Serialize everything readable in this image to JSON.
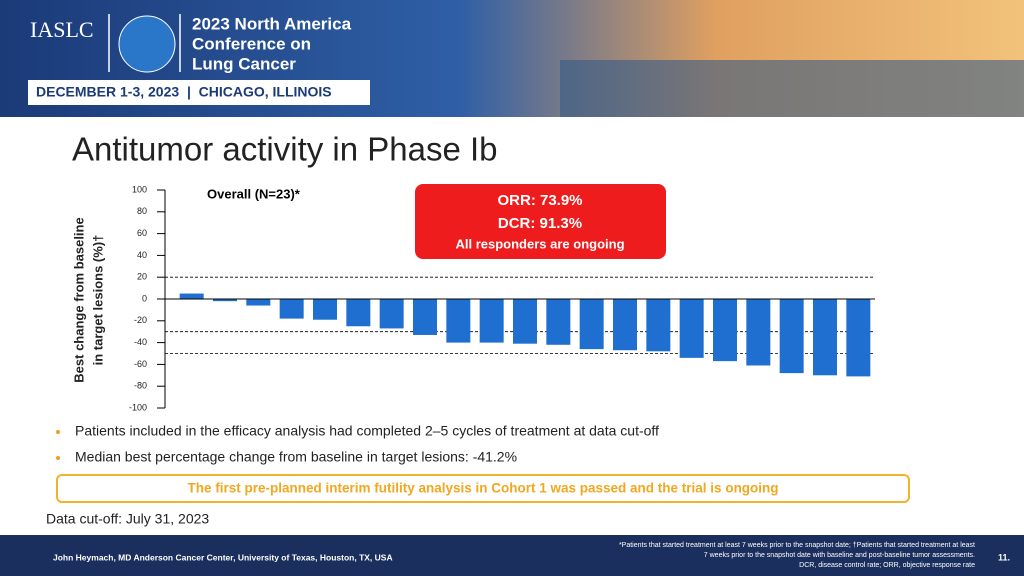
{
  "header": {
    "org": "IASLC",
    "conference": [
      "2023 North America",
      "Conference on",
      "Lung Cancer"
    ],
    "dates": "DECEMBER 1-3, 2023  |  CHICAGO, ILLINOIS"
  },
  "slide_title": "Antitumor activity in Phase Ib",
  "chart_data": {
    "type": "bar",
    "title": "Overall (N=23)*",
    "y_label": [
      "Best change from baseline",
      "in target lesions (%)†"
    ],
    "values": [
      5,
      -2,
      -6,
      -18,
      -19,
      -25,
      -27,
      -33,
      -40,
      -40,
      -41,
      -42,
      -46,
      -47,
      -48,
      -54,
      -57,
      -61,
      -68,
      -70,
      -71
    ],
    "color": "#1f6fd1",
    "ylim": [
      -100,
      100
    ],
    "yticks": [
      -100,
      -80,
      -60,
      -40,
      -20,
      0,
      20,
      40,
      60,
      80,
      100
    ],
    "reference_lines": [
      20,
      -30,
      -50
    ],
    "callout": [
      "ORR: 73.9%",
      "DCR: 91.3%",
      "All responders are ongoing"
    ]
  },
  "bullets": [
    "Patients included in the efficacy analysis had completed 2–5 cycles of treatment at data cut-off",
    "Median best percentage change from baseline in target lesions: -41.2%"
  ],
  "highlight": "The first pre-planned interim futility analysis in Cohort 1 was passed and the trial is ongoing",
  "data_cutoff": "Data cut-off: July 31, 2023",
  "footer": {
    "author": "John Heymach, MD Anderson Cancer Center, University of Texas, Houston, TX, USA",
    "notes": [
      "*Patients that started treatment at least 7 weeks prior to the snapshot date; †Patients that started treatment at least",
      "7 weeks prior to the snapshot date with baseline and post-baseline tumor assessments.",
      "DCR, disease control rate; ORR, objective response rate"
    ],
    "page": "11."
  }
}
